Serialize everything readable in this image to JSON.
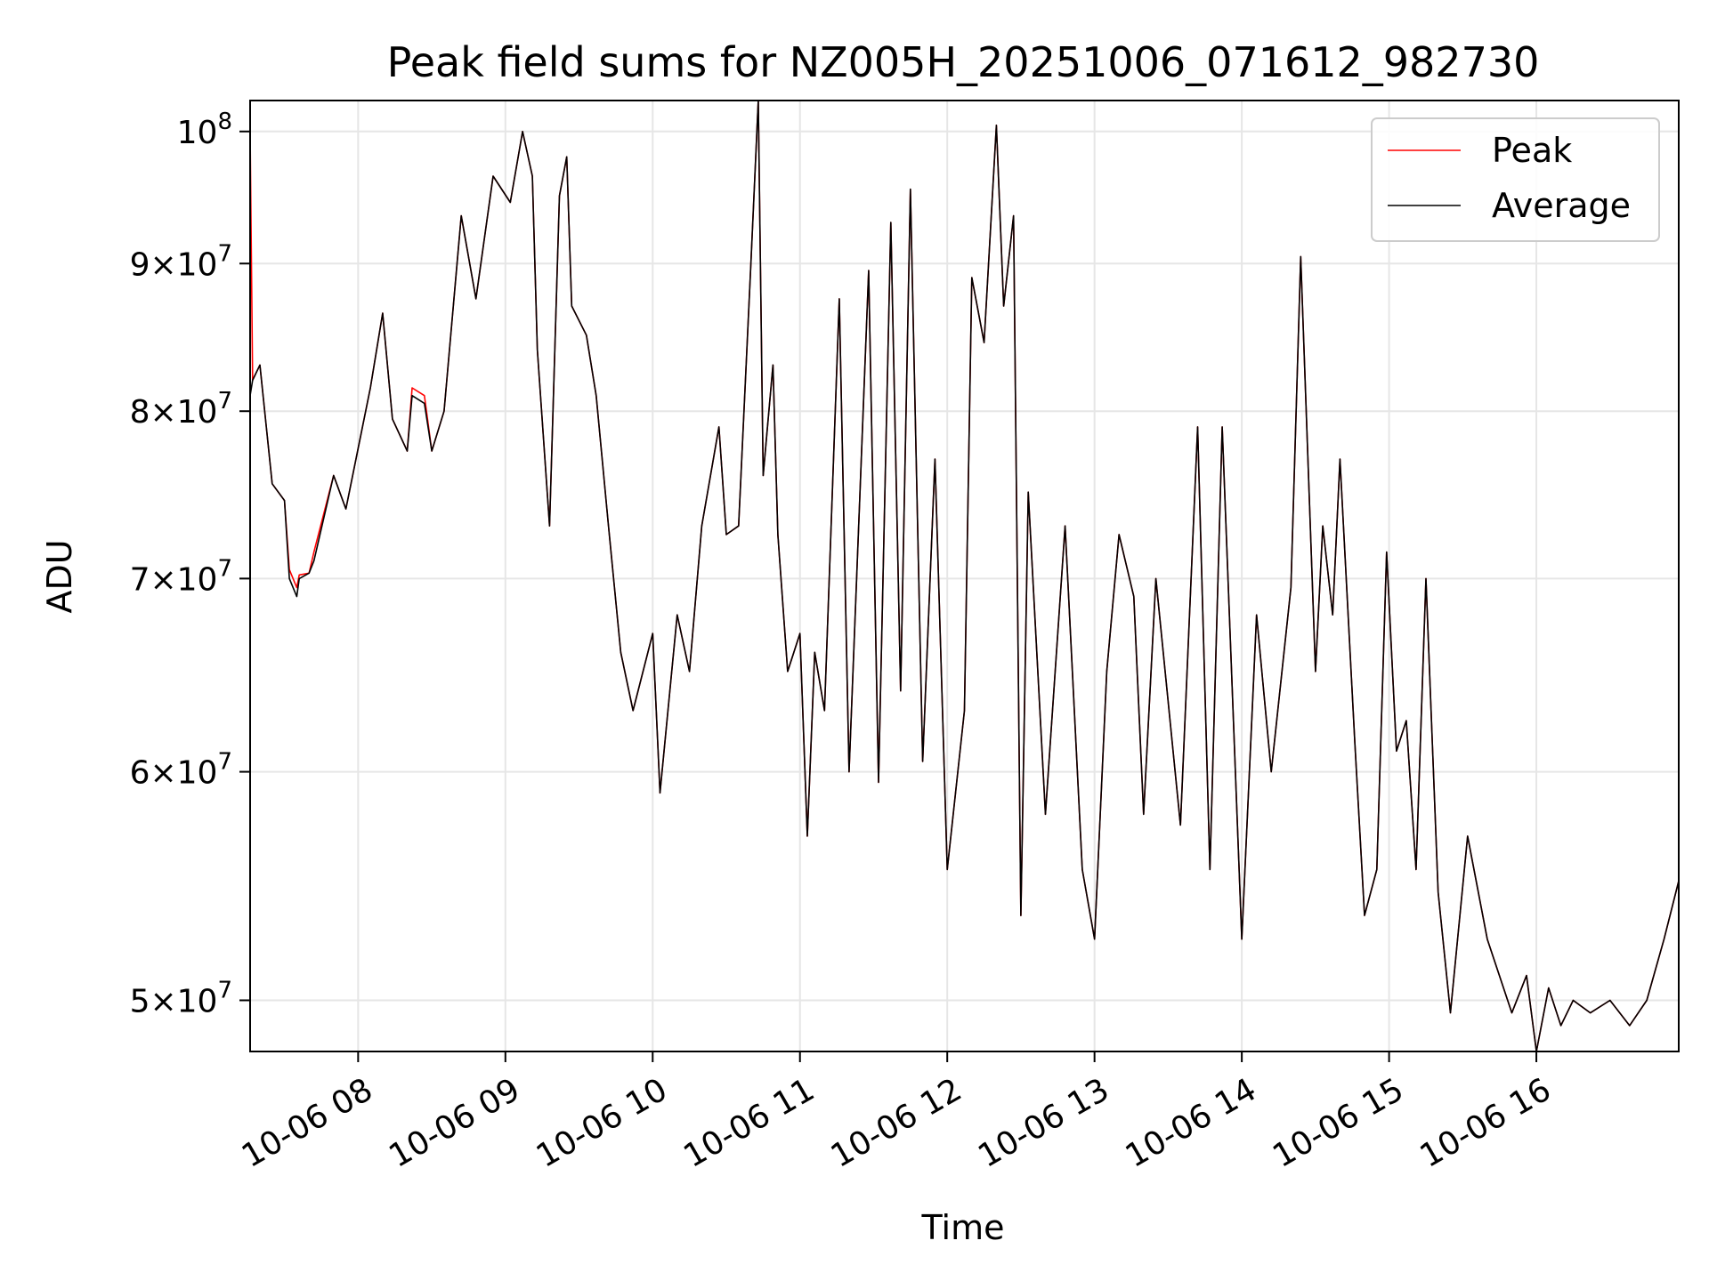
{
  "chart_data": {
    "type": "line",
    "title": "Peak field sums for NZ005H_20251006_071612_982730",
    "xlabel": "Time",
    "ylabel": "ADU",
    "yscale": "log",
    "ylim": [
      48000000,
      102500000
    ],
    "xlim": [
      "2025-10-06 07:16",
      "2025-10-06 16:58"
    ],
    "grid": true,
    "legend_position": "top-right",
    "x_ticks": [
      {
        "t": "2025-10-06 08:00",
        "label": "10-06 08"
      },
      {
        "t": "2025-10-06 09:00",
        "label": "10-06 09"
      },
      {
        "t": "2025-10-06 10:00",
        "label": "10-06 10"
      },
      {
        "t": "2025-10-06 11:00",
        "label": "10-06 11"
      },
      {
        "t": "2025-10-06 12:00",
        "label": "10-06 12"
      },
      {
        "t": "2025-10-06 13:00",
        "label": "10-06 13"
      },
      {
        "t": "2025-10-06 14:00",
        "label": "10-06 14"
      },
      {
        "t": "2025-10-06 15:00",
        "label": "10-06 15"
      },
      {
        "t": "2025-10-06 16:00",
        "label": "10-06 16"
      }
    ],
    "y_ticks": [
      {
        "value": 50000000,
        "base": "5",
        "exp": "7"
      },
      {
        "value": 60000000,
        "base": "6",
        "exp": "7"
      },
      {
        "value": 70000000,
        "base": "7",
        "exp": "7"
      },
      {
        "value": 80000000,
        "base": "8",
        "exp": "7"
      },
      {
        "value": 90000000,
        "base": "9",
        "exp": "7"
      },
      {
        "value": 100000000,
        "base": "",
        "exp": "8"
      }
    ],
    "series": [
      {
        "name": "Peak",
        "color": "#ff0000",
        "x": [
          "2025-10-06 07:16",
          "2025-10-06 07:17",
          "2025-10-06 07:20",
          "2025-10-06 07:25",
          "2025-10-06 07:30",
          "2025-10-06 07:32",
          "2025-10-06 07:35",
          "2025-10-06 07:36",
          "2025-10-06 07:40",
          "2025-10-06 07:42",
          "2025-10-06 07:50",
          "2025-10-06 07:55",
          "2025-10-06 08:05",
          "2025-10-06 08:10",
          "2025-10-06 08:14",
          "2025-10-06 08:20",
          "2025-10-06 08:22",
          "2025-10-06 08:27",
          "2025-10-06 08:30",
          "2025-10-06 08:35",
          "2025-10-06 08:42",
          "2025-10-06 08:48",
          "2025-10-06 08:55",
          "2025-10-06 09:02",
          "2025-10-06 09:07",
          "2025-10-06 09:11",
          "2025-10-06 09:13",
          "2025-10-06 09:18",
          "2025-10-06 09:22",
          "2025-10-06 09:25",
          "2025-10-06 09:27",
          "2025-10-06 09:33",
          "2025-10-06 09:37",
          "2025-10-06 09:42",
          "2025-10-06 09:47",
          "2025-10-06 09:52",
          "2025-10-06 10:00",
          "2025-10-06 10:03",
          "2025-10-06 10:10",
          "2025-10-06 10:15",
          "2025-10-06 10:20",
          "2025-10-06 10:27",
          "2025-10-06 10:30",
          "2025-10-06 10:35",
          "2025-10-06 10:40",
          "2025-10-06 10:43",
          "2025-10-06 10:45",
          "2025-10-06 10:49",
          "2025-10-06 10:51",
          "2025-10-06 10:55",
          "2025-10-06 11:00",
          "2025-10-06 11:03",
          "2025-10-06 11:06",
          "2025-10-06 11:10",
          "2025-10-06 11:16",
          "2025-10-06 11:20",
          "2025-10-06 11:28",
          "2025-10-06 11:32",
          "2025-10-06 11:37",
          "2025-10-06 11:41",
          "2025-10-06 11:45",
          "2025-10-06 11:50",
          "2025-10-06 11:55",
          "2025-10-06 12:00",
          "2025-10-06 12:07",
          "2025-10-06 12:10",
          "2025-10-06 12:15",
          "2025-10-06 12:20",
          "2025-10-06 12:23",
          "2025-10-06 12:27",
          "2025-10-06 12:30",
          "2025-10-06 12:33",
          "2025-10-06 12:40",
          "2025-10-06 12:48",
          "2025-10-06 12:55",
          "2025-10-06 13:00",
          "2025-10-06 13:05",
          "2025-10-06 13:10",
          "2025-10-06 13:16",
          "2025-10-06 13:20",
          "2025-10-06 13:25",
          "2025-10-06 13:35",
          "2025-10-06 13:42",
          "2025-10-06 13:47",
          "2025-10-06 13:52",
          "2025-10-06 14:00",
          "2025-10-06 14:06",
          "2025-10-06 14:12",
          "2025-10-06 14:20",
          "2025-10-06 14:24",
          "2025-10-06 14:30",
          "2025-10-06 14:33",
          "2025-10-06 14:37",
          "2025-10-06 14:40",
          "2025-10-06 14:46",
          "2025-10-06 14:50",
          "2025-10-06 14:55",
          "2025-10-06 14:59",
          "2025-10-06 15:03",
          "2025-10-06 15:07",
          "2025-10-06 15:11",
          "2025-10-06 15:15",
          "2025-10-06 15:20",
          "2025-10-06 15:25",
          "2025-10-06 15:32",
          "2025-10-06 15:40",
          "2025-10-06 15:50",
          "2025-10-06 15:56",
          "2025-10-06 16:00",
          "2025-10-06 16:05",
          "2025-10-06 16:10",
          "2025-10-06 16:15",
          "2025-10-06 16:22",
          "2025-10-06 16:30",
          "2025-10-06 16:38",
          "2025-10-06 16:45",
          "2025-10-06 16:52",
          "2025-10-06 16:58"
        ],
        "y": [
          100000000,
          82000000,
          83000000,
          75500000,
          74500000,
          70500000,
          69500000,
          70200000,
          70300000,
          71500000,
          76000000,
          74000000,
          81500000,
          86500000,
          79500000,
          77500000,
          81500000,
          81000000,
          77500000,
          80000000,
          93500000,
          87500000,
          96500000,
          94500000,
          100000000,
          96500000,
          84000000,
          73000000,
          95000000,
          98000000,
          87000000,
          85000000,
          81000000,
          73000000,
          66000000,
          63000000,
          67000000,
          59000000,
          68000000,
          65000000,
          73000000,
          79000000,
          72500000,
          73000000,
          90000000,
          102500000,
          76000000,
          83000000,
          72500000,
          65000000,
          67000000,
          57000000,
          66000000,
          63000000,
          87500000,
          60000000,
          89500000,
          59500000,
          93000000,
          64000000,
          95500000,
          60500000,
          77000000,
          55500000,
          63000000,
          89000000,
          84500000,
          100500000,
          87000000,
          93500000,
          53500000,
          75000000,
          58000000,
          73000000,
          55500000,
          52500000,
          65000000,
          72500000,
          69000000,
          58000000,
          70000000,
          57500000,
          79000000,
          55500000,
          79000000,
          52500000,
          68000000,
          60000000,
          69500000,
          90500000,
          65000000,
          73000000,
          68000000,
          77000000,
          61500000,
          53500000,
          55500000,
          71500000,
          61000000,
          62500000,
          55500000,
          70000000,
          54500000,
          49500000,
          57000000,
          52500000,
          49500000,
          51000000,
          48000000,
          50500000,
          49000000,
          50000000,
          49500000,
          50000000,
          49000000,
          50000000,
          52500000,
          55000000
        ]
      },
      {
        "name": "Average",
        "color": "#000000",
        "x": [
          "2025-10-06 07:16",
          "2025-10-06 07:17",
          "2025-10-06 07:20",
          "2025-10-06 07:25",
          "2025-10-06 07:30",
          "2025-10-06 07:32",
          "2025-10-06 07:35",
          "2025-10-06 07:36",
          "2025-10-06 07:40",
          "2025-10-06 07:42",
          "2025-10-06 07:50",
          "2025-10-06 07:55",
          "2025-10-06 08:05",
          "2025-10-06 08:10",
          "2025-10-06 08:14",
          "2025-10-06 08:20",
          "2025-10-06 08:22",
          "2025-10-06 08:27",
          "2025-10-06 08:30",
          "2025-10-06 08:35",
          "2025-10-06 08:42",
          "2025-10-06 08:48",
          "2025-10-06 08:55",
          "2025-10-06 09:02",
          "2025-10-06 09:07",
          "2025-10-06 09:11",
          "2025-10-06 09:13",
          "2025-10-06 09:18",
          "2025-10-06 09:22",
          "2025-10-06 09:25",
          "2025-10-06 09:27",
          "2025-10-06 09:33",
          "2025-10-06 09:37",
          "2025-10-06 09:42",
          "2025-10-06 09:47",
          "2025-10-06 09:52",
          "2025-10-06 10:00",
          "2025-10-06 10:03",
          "2025-10-06 10:10",
          "2025-10-06 10:15",
          "2025-10-06 10:20",
          "2025-10-06 10:27",
          "2025-10-06 10:30",
          "2025-10-06 10:35",
          "2025-10-06 10:40",
          "2025-10-06 10:43",
          "2025-10-06 10:45",
          "2025-10-06 10:49",
          "2025-10-06 10:51",
          "2025-10-06 10:55",
          "2025-10-06 11:00",
          "2025-10-06 11:03",
          "2025-10-06 11:06",
          "2025-10-06 11:10",
          "2025-10-06 11:16",
          "2025-10-06 11:20",
          "2025-10-06 11:28",
          "2025-10-06 11:32",
          "2025-10-06 11:37",
          "2025-10-06 11:41",
          "2025-10-06 11:45",
          "2025-10-06 11:50",
          "2025-10-06 11:55",
          "2025-10-06 12:00",
          "2025-10-06 12:07",
          "2025-10-06 12:10",
          "2025-10-06 12:15",
          "2025-10-06 12:20",
          "2025-10-06 12:23",
          "2025-10-06 12:27",
          "2025-10-06 12:30",
          "2025-10-06 12:33",
          "2025-10-06 12:40",
          "2025-10-06 12:48",
          "2025-10-06 12:55",
          "2025-10-06 13:00",
          "2025-10-06 13:05",
          "2025-10-06 13:10",
          "2025-10-06 13:16",
          "2025-10-06 13:20",
          "2025-10-06 13:25",
          "2025-10-06 13:35",
          "2025-10-06 13:42",
          "2025-10-06 13:47",
          "2025-10-06 13:52",
          "2025-10-06 14:00",
          "2025-10-06 14:06",
          "2025-10-06 14:12",
          "2025-10-06 14:20",
          "2025-10-06 14:24",
          "2025-10-06 14:30",
          "2025-10-06 14:33",
          "2025-10-06 14:37",
          "2025-10-06 14:40",
          "2025-10-06 14:46",
          "2025-10-06 14:50",
          "2025-10-06 14:55",
          "2025-10-06 14:59",
          "2025-10-06 15:03",
          "2025-10-06 15:07",
          "2025-10-06 15:11",
          "2025-10-06 15:15",
          "2025-10-06 15:20",
          "2025-10-06 15:25",
          "2025-10-06 15:32",
          "2025-10-06 15:40",
          "2025-10-06 15:50",
          "2025-10-06 15:56",
          "2025-10-06 16:00",
          "2025-10-06 16:05",
          "2025-10-06 16:10",
          "2025-10-06 16:15",
          "2025-10-06 16:22",
          "2025-10-06 16:30",
          "2025-10-06 16:38",
          "2025-10-06 16:45",
          "2025-10-06 16:52",
          "2025-10-06 16:58"
        ],
        "y": [
          81000000,
          82000000,
          83000000,
          75500000,
          74500000,
          70000000,
          69000000,
          70000000,
          70300000,
          71000000,
          76000000,
          74000000,
          81500000,
          86500000,
          79500000,
          77500000,
          81000000,
          80500000,
          77500000,
          80000000,
          93500000,
          87500000,
          96500000,
          94500000,
          100000000,
          96500000,
          84000000,
          73000000,
          95000000,
          98000000,
          87000000,
          85000000,
          81000000,
          73000000,
          66000000,
          63000000,
          67000000,
          59000000,
          68000000,
          65000000,
          73000000,
          79000000,
          72500000,
          73000000,
          90000000,
          102500000,
          76000000,
          83000000,
          72500000,
          65000000,
          67000000,
          57000000,
          66000000,
          63000000,
          87500000,
          60000000,
          89500000,
          59500000,
          93000000,
          64000000,
          95500000,
          60500000,
          77000000,
          55500000,
          63000000,
          89000000,
          84500000,
          100500000,
          87000000,
          93500000,
          53500000,
          75000000,
          58000000,
          73000000,
          55500000,
          52500000,
          65000000,
          72500000,
          69000000,
          58000000,
          70000000,
          57500000,
          79000000,
          55500000,
          79000000,
          52500000,
          68000000,
          60000000,
          69500000,
          90500000,
          65000000,
          73000000,
          68000000,
          77000000,
          61500000,
          53500000,
          55500000,
          71500000,
          61000000,
          62500000,
          55500000,
          70000000,
          54500000,
          49500000,
          57000000,
          52500000,
          49500000,
          51000000,
          48000000,
          50500000,
          49000000,
          50000000,
          49500000,
          50000000,
          49000000,
          50000000,
          52500000,
          55000000
        ]
      }
    ]
  }
}
